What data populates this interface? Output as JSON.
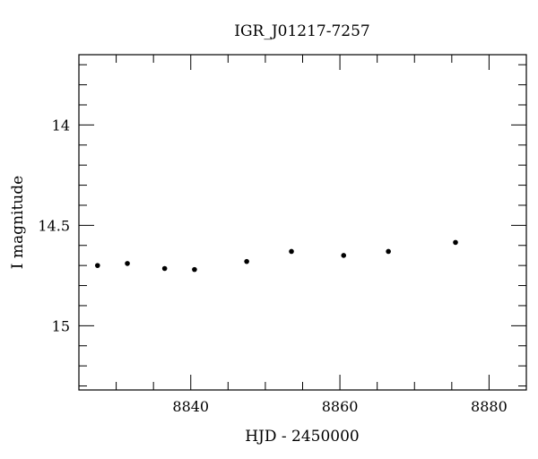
{
  "chart_data": {
    "type": "scatter",
    "title": "IGR_J01217-7257",
    "xlabel": "HJD - 2450000",
    "ylabel": "I magnitude",
    "xlim": [
      8825,
      8885
    ],
    "ylim": [
      15.32,
      13.65
    ],
    "y_inverted": true,
    "x_major_ticks": [
      8840,
      8860,
      8880
    ],
    "x_minor_step": 5,
    "y_major_ticks": [
      14,
      14.5,
      15
    ],
    "y_minor_step": 0.1,
    "x_tick_labels": [
      "8840",
      "8860",
      "8880"
    ],
    "y_tick_labels": [
      "14",
      "14.5",
      "15"
    ],
    "grid": false,
    "legend": "none",
    "points": [
      {
        "x": 8827.5,
        "y": 14.7
      },
      {
        "x": 8831.5,
        "y": 14.69
      },
      {
        "x": 8836.5,
        "y": 14.715
      },
      {
        "x": 8840.5,
        "y": 14.72
      },
      {
        "x": 8847.5,
        "y": 14.68
      },
      {
        "x": 8853.5,
        "y": 14.63
      },
      {
        "x": 8860.5,
        "y": 14.65
      },
      {
        "x": 8866.5,
        "y": 14.63
      },
      {
        "x": 8875.5,
        "y": 14.585
      }
    ]
  }
}
